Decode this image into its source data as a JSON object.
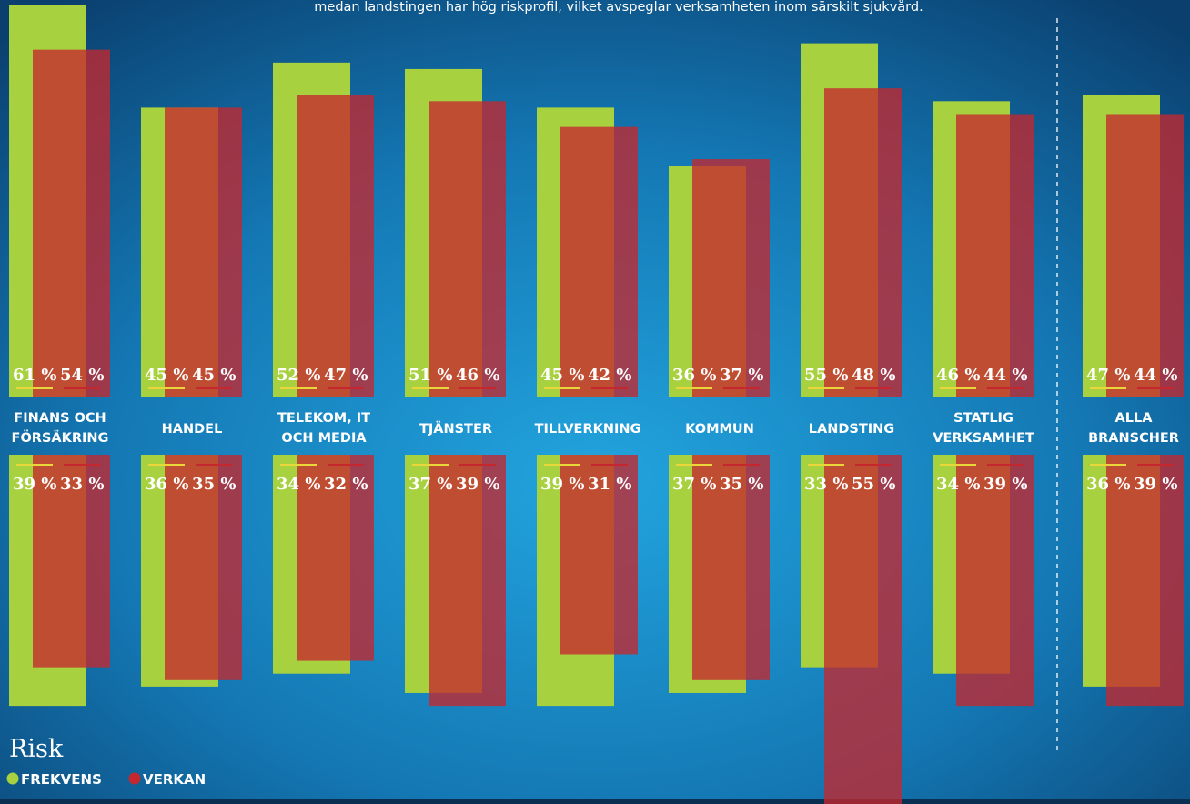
{
  "intro": "medan landstingen har hög riskprofil, vilket avspeglar verksamheten inom särskilt sjukvård.",
  "chart_data": {
    "type": "bar",
    "legend_title": "Risk",
    "categories": [
      [
        "FINANS OCH",
        "FÖRSÄKRING"
      ],
      [
        "HANDEL"
      ],
      [
        "TELEKOM, IT",
        "OCH MEDIA"
      ],
      [
        "TJÄNSTER"
      ],
      [
        "TILLVERKNING"
      ],
      [
        "KOMMUN"
      ],
      [
        "LANDSTING"
      ],
      [
        "STATLIG",
        "VERKSAMHET"
      ],
      [
        "ALLA",
        "BRANSCHER"
      ]
    ],
    "series": [
      {
        "name": "FREKVENS",
        "color": "#a8d13f",
        "values": [
          61,
          45,
          52,
          51,
          45,
          36,
          55,
          46,
          47
        ],
        "value_labels": [
          "61 %",
          "45 %",
          "52 %",
          "51 %",
          "45 %",
          "36 %",
          "55 %",
          "46 %",
          "47 %"
        ],
        "values_lower": [
          39,
          36,
          34,
          37,
          39,
          37,
          33,
          34,
          36
        ],
        "value_labels_lower": [
          "39 %",
          "36 %",
          "34 %",
          "37 %",
          "39 %",
          "37 %",
          "33 %",
          "34 %",
          "36 %"
        ]
      },
      {
        "name": "VERKAN",
        "color": "#c4282e",
        "values": [
          54,
          45,
          47,
          46,
          42,
          37,
          48,
          44,
          44
        ],
        "value_labels": [
          "54 %",
          "45 %",
          "47 %",
          "46 %",
          "42 %",
          "37 %",
          "48 %",
          "44 %",
          "44 %"
        ],
        "values_lower": [
          33,
          35,
          32,
          39,
          31,
          35,
          55,
          39,
          39
        ],
        "value_labels_lower": [
          "33 %",
          "35 %",
          "32 %",
          "39 %",
          "31 %",
          "35 %",
          "55 %",
          "39 %",
          "39 %"
        ]
      }
    ]
  }
}
